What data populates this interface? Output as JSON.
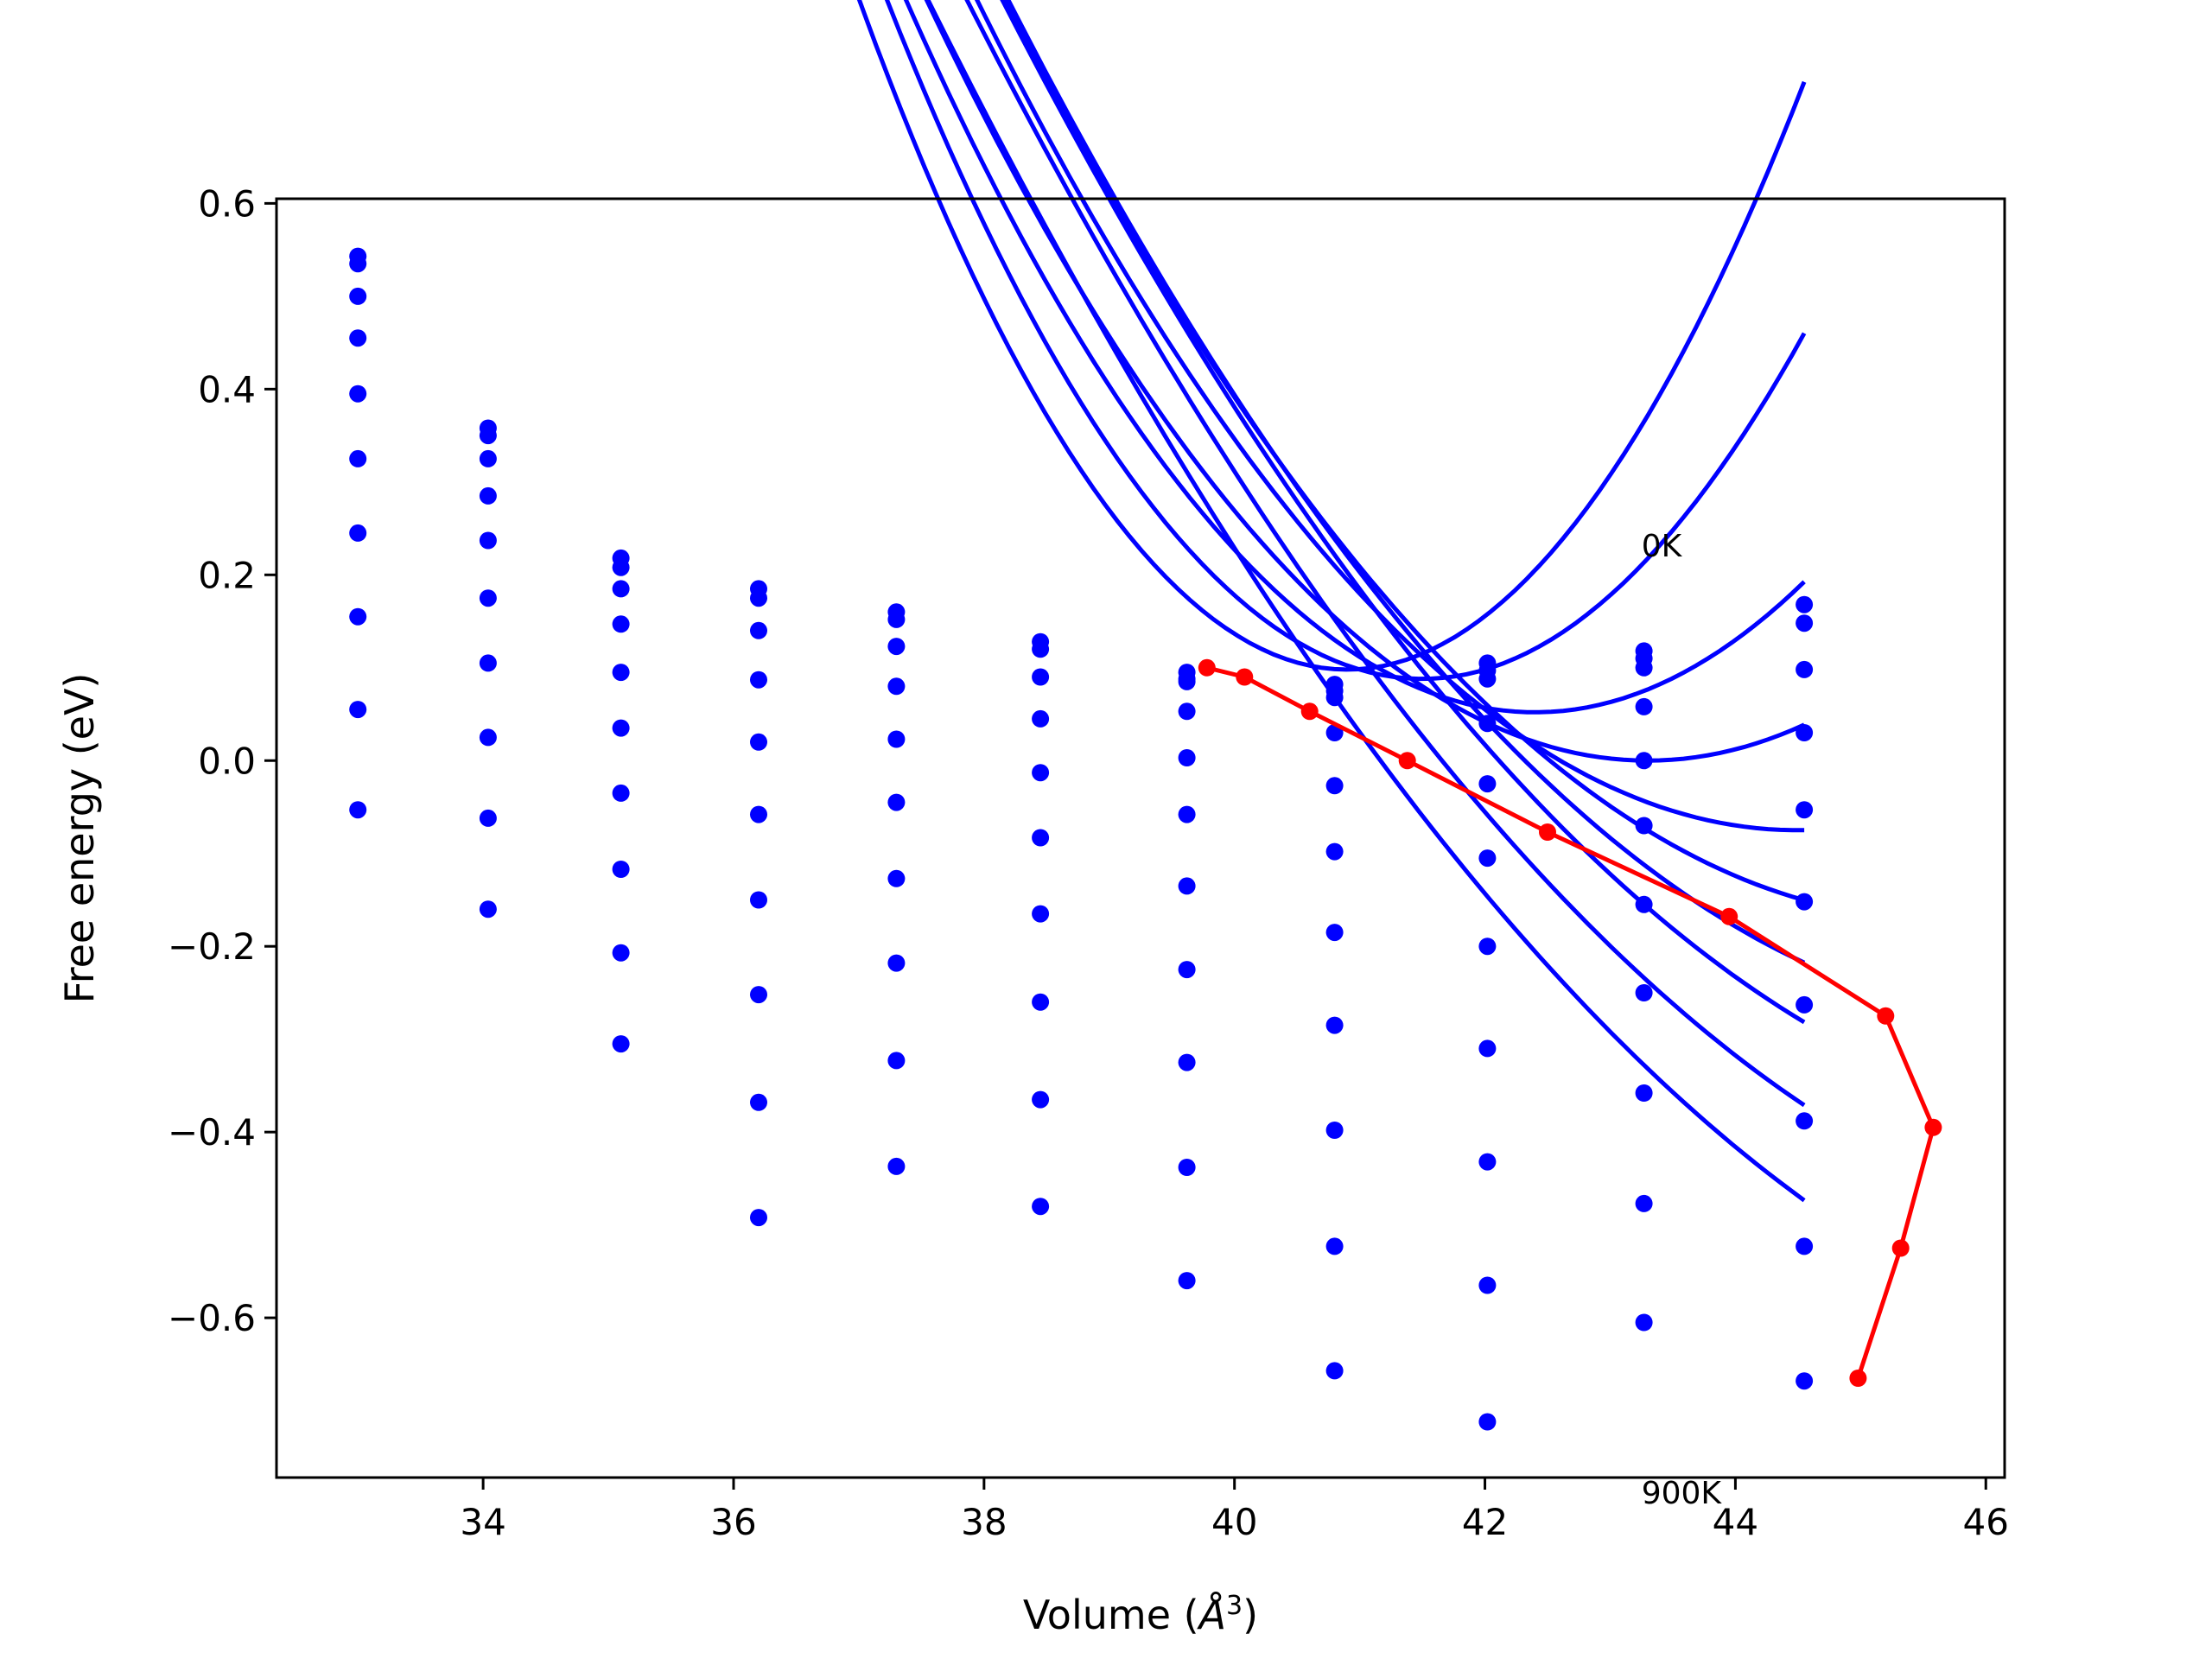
{
  "chart_data": {
    "type": "line",
    "title": "",
    "xlabel": "Volume (",
    "xlabel_unit": "Å",
    "xlabel_exp": "3",
    "xlabel_close": ")",
    "ylabel": "Free energy (eV)",
    "xlim": [
      32.35,
      46.15
    ],
    "ylim": [
      -0.772,
      0.605
    ],
    "xticks": [
      34,
      36,
      38,
      40,
      42,
      44,
      46
    ],
    "yticks": [
      0.6,
      0.4,
      0.2,
      0.0,
      -0.2,
      -0.4,
      -0.6
    ],
    "ytick_labels": [
      "0.6",
      "0.4",
      "0.2",
      "0.0",
      "−0.2",
      "−0.4",
      "−0.6"
    ],
    "grid": false,
    "annotations": [
      {
        "text": "0K",
        "x": 43.25,
        "y": 0.22
      },
      {
        "text": "900K",
        "x": 43.25,
        "y": -0.8
      }
    ],
    "volumes": [
      33.0,
      34.04,
      35.1,
      36.2,
      37.3,
      38.45,
      39.62,
      40.8,
      42.02,
      43.27,
      44.55
    ],
    "points": [
      [
        0.543,
        0.358,
        0.218,
        0.185,
        0.16,
        0.128,
        0.095,
        0.082,
        0.105,
        0.118,
        0.168
      ],
      [
        0.535,
        0.35,
        0.208,
        0.175,
        0.152,
        0.12,
        0.088,
        0.075,
        0.097,
        0.11,
        0.148
      ],
      [
        0.5,
        0.325,
        0.185,
        0.14,
        0.123,
        0.09,
        0.085,
        0.068,
        0.088,
        0.1,
        0.098
      ],
      [
        0.455,
        0.285,
        0.147,
        0.087,
        0.08,
        0.045,
        0.053,
        0.03,
        0.04,
        0.058,
        0.03
      ],
      [
        0.395,
        0.237,
        0.095,
        0.02,
        0.023,
        -0.013,
        0.003,
        -0.027,
        -0.025,
        0.0,
        -0.053
      ],
      [
        0.325,
        0.175,
        0.035,
        -0.058,
        -0.045,
        -0.083,
        -0.058,
        -0.098,
        -0.105,
        -0.07,
        -0.152
      ],
      [
        0.245,
        0.105,
        -0.035,
        -0.15,
        -0.127,
        -0.165,
        -0.135,
        -0.185,
        -0.2,
        -0.155,
        -0.263
      ],
      [
        0.155,
        0.025,
        -0.117,
        -0.252,
        -0.218,
        -0.26,
        -0.225,
        -0.285,
        -0.31,
        -0.25,
        -0.388
      ],
      [
        0.055,
        -0.062,
        -0.207,
        -0.368,
        -0.323,
        -0.365,
        -0.325,
        -0.398,
        -0.432,
        -0.358,
        -0.523
      ],
      [
        -0.053,
        -0.16,
        -0.305,
        -0.492,
        -0.437,
        -0.48,
        -0.438,
        -0.523,
        -0.565,
        -0.477,
        -0.668
      ],
      [
        null,
        null,
        null,
        null,
        null,
        null,
        -0.56,
        -0.657,
        -0.712,
        -0.605,
        null
      ]
    ],
    "fits": [
      {
        "E0": 0.098,
        "V0": 40.9,
        "a": 0.0475
      },
      {
        "E0": 0.088,
        "V0": 41.5,
        "a": 0.04
      },
      {
        "E0": 0.052,
        "V0": 42.4,
        "a": 0.0304
      },
      {
        "E0": 0.0,
        "V0": 43.3,
        "a": 0.0247
      },
      {
        "E0": -0.075,
        "V0": 44.5,
        "a": 0.0208
      },
      {
        "E0": -0.17,
        "V0": 45.6,
        "a": 0.0179
      },
      {
        "E0": -0.278,
        "V0": 46.5,
        "a": 0.0159
      },
      {
        "E0": -0.397,
        "V0": 47.4,
        "a": 0.0142
      },
      {
        "E0": -0.527,
        "V0": 48.0,
        "a": 0.0131
      },
      {
        "E0": -0.667,
        "V0": 48.5,
        "a": 0.0124
      }
    ],
    "fit_range": [
      33.0,
      44.55
    ],
    "minima_series": {
      "x": [
        39.78,
        40.08,
        40.6,
        41.38,
        42.5,
        43.95,
        45.2,
        45.58,
        45.32,
        44.98
      ],
      "y": [
        0.1,
        0.09,
        0.053,
        0.0,
        -0.077,
        -0.168,
        -0.275,
        -0.395,
        -0.525,
        -0.665
      ]
    },
    "colors": {
      "curves": "#0000ff",
      "minima": "#ff0000",
      "frame": "#000000"
    }
  }
}
